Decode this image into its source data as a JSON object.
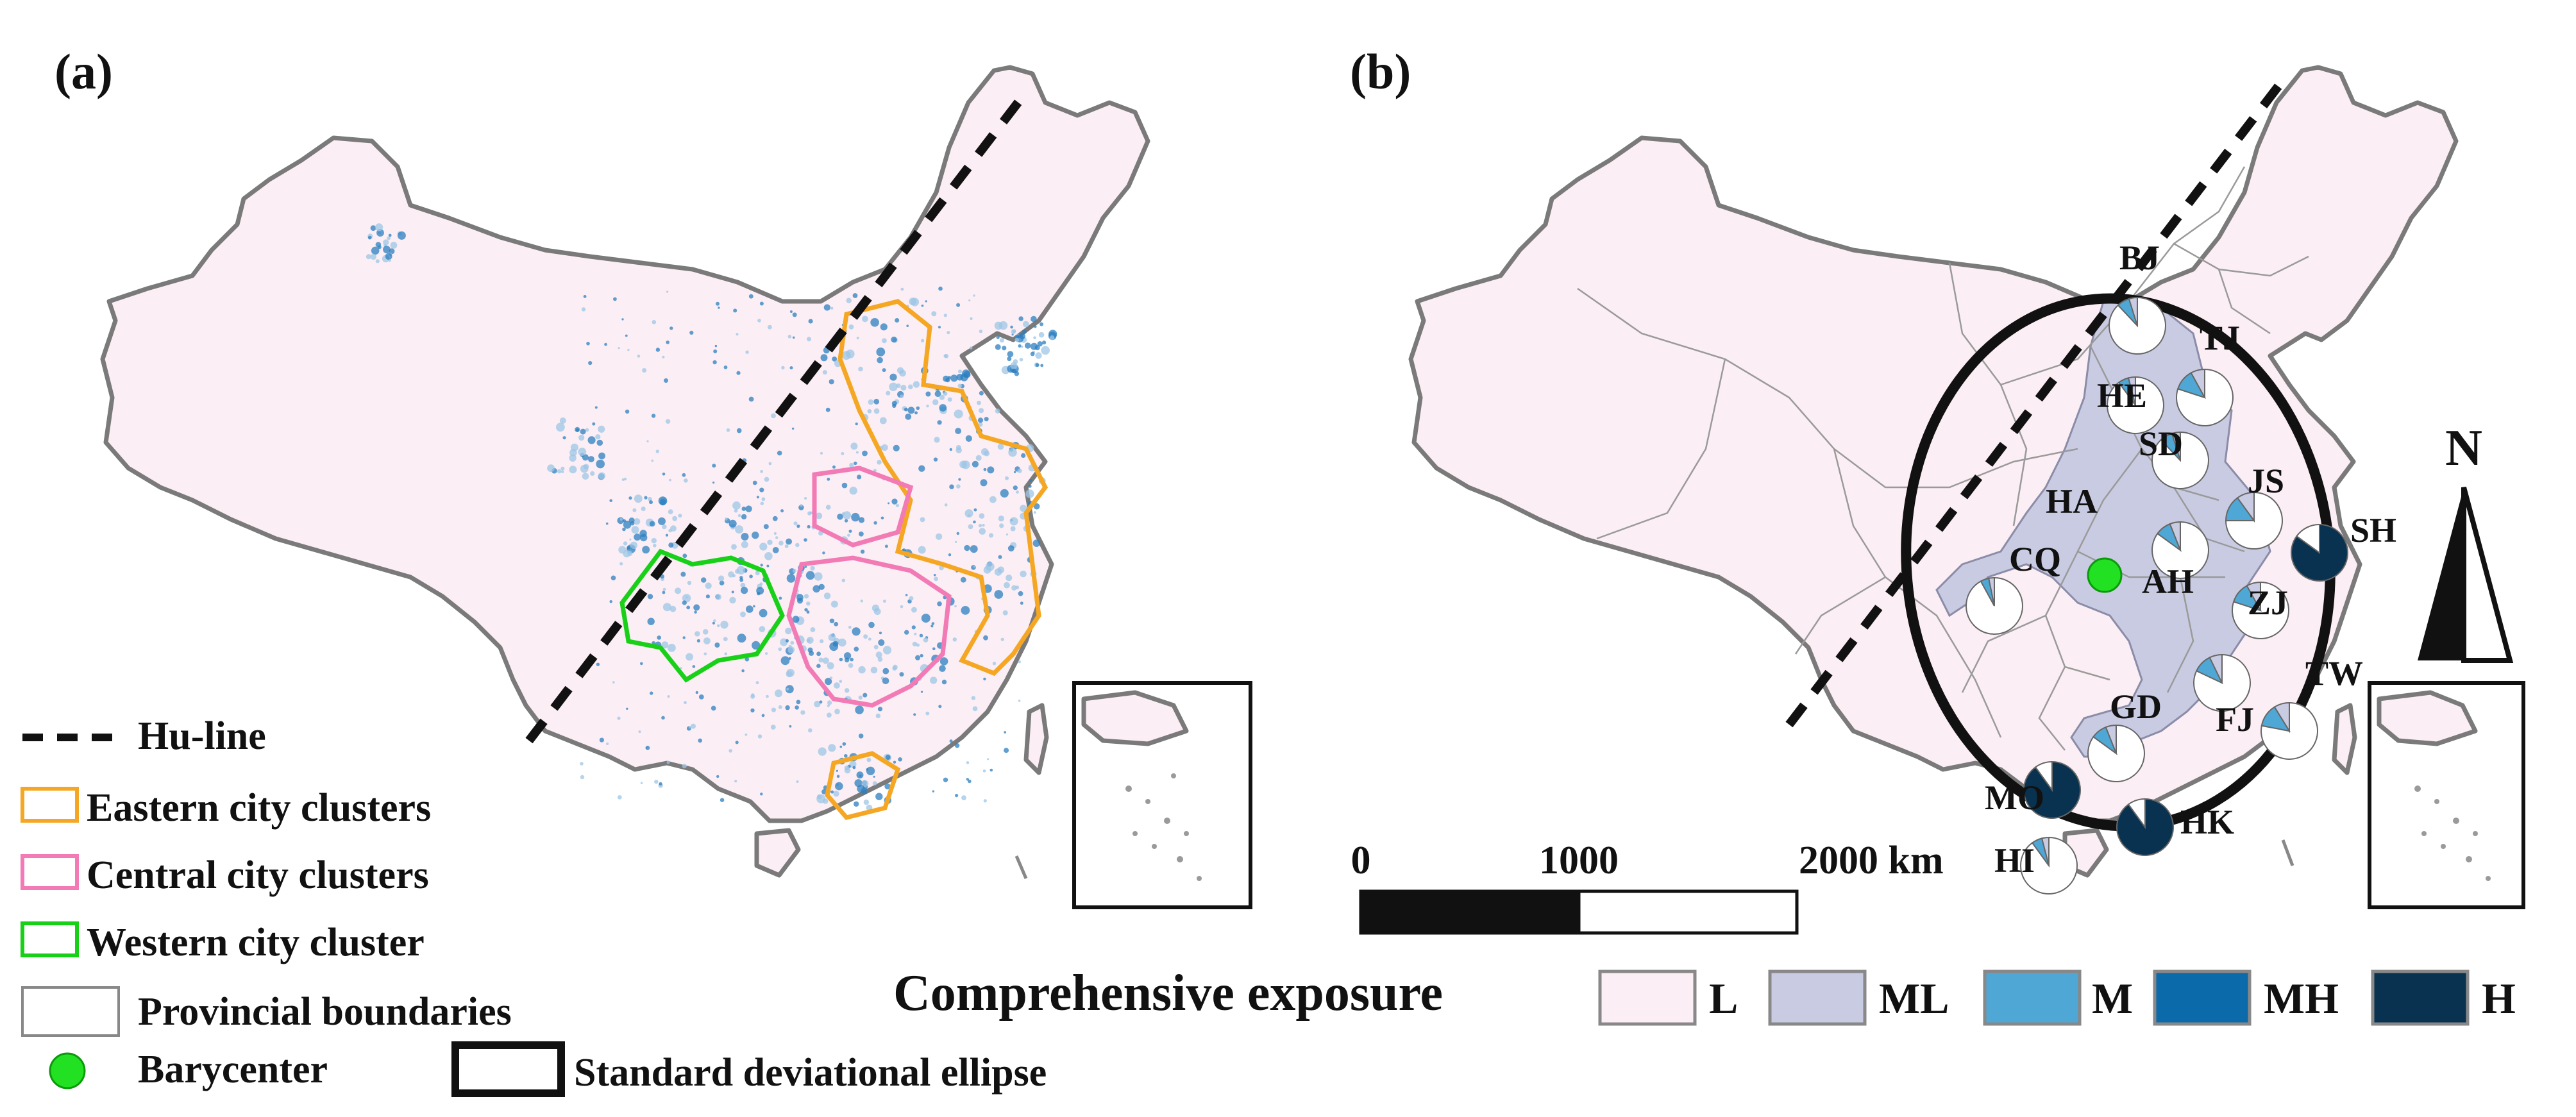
{
  "panels": {
    "a": {
      "label": "(a)"
    },
    "b": {
      "label": "(b)"
    }
  },
  "legend_a": {
    "hu_line": "Hu-line",
    "eastern": "Eastern city clusters",
    "central": "Central city clusters",
    "western": "Western city cluster",
    "provincial": "Provincial boundaries",
    "barycenter": "Barycenter",
    "ellipse": "Standard deviational ellipse"
  },
  "colors": {
    "eastern": "#f5a623",
    "central": "#f27ab5",
    "western": "#19d019",
    "barycenter": "#22e022",
    "L": "#fbeef4",
    "ML": "#c9cbe2",
    "M": "#4ea7d4",
    "MH": "#0b6aaa",
    "H": "#08324f"
  },
  "scale": {
    "ticks": [
      "0",
      "1000",
      "2000 km"
    ]
  },
  "north_arrow": {
    "label": "N"
  },
  "exposure_legend": {
    "title": "Comprehensive exposure",
    "classes": [
      "L",
      "ML",
      "M",
      "MH",
      "H"
    ]
  },
  "provinces": [
    {
      "code": "BJ",
      "dark": 0.12
    },
    {
      "code": "TJ",
      "dark": 0.2
    },
    {
      "code": "HE",
      "dark": 0.1
    },
    {
      "code": "SD",
      "dark": 0.12
    },
    {
      "code": "JS",
      "dark": 0.25
    },
    {
      "code": "SH",
      "dark": 0.85
    },
    {
      "code": "HA",
      "dark": 0.1
    },
    {
      "code": "AH",
      "dark": 0.15
    },
    {
      "code": "CQ",
      "dark": 0.08
    },
    {
      "code": "ZJ",
      "dark": 0.2
    },
    {
      "code": "FJ",
      "dark": 0.18
    },
    {
      "code": "TW",
      "dark": 0.22
    },
    {
      "code": "GD",
      "dark": 0.15
    },
    {
      "code": "MO",
      "dark": 0.9
    },
    {
      "code": "HK",
      "dark": 0.9
    },
    {
      "code": "HI",
      "dark": 0.1
    }
  ]
}
